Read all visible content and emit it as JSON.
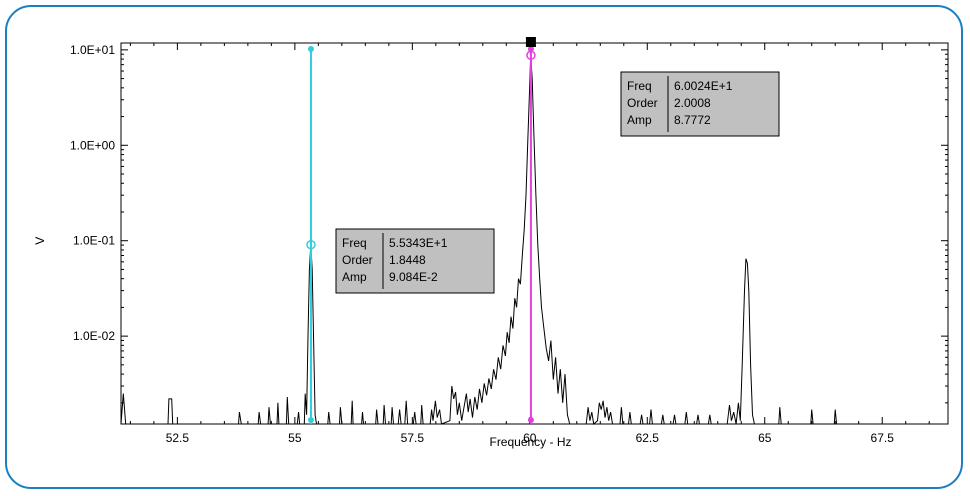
{
  "chart_data": {
    "type": "line",
    "xlabel": "Frequency - Hz",
    "ylabel": "V",
    "xlim": [
      51.3,
      68.9
    ],
    "ylim": [
      0.0012,
      11.8
    ],
    "yscale": "log",
    "x_ticks": [
      52.5,
      55,
      57.5,
      60,
      62.5,
      65,
      67.5
    ],
    "x_tick_labels": [
      "52.5",
      "55",
      "57.5",
      "60",
      "62.5",
      "65",
      "67.5"
    ],
    "y_ticks": [
      10,
      1,
      0.1,
      0.01
    ],
    "y_tick_labels": [
      "1.0E+01",
      "1.0E+00",
      "1.0E-01",
      "1.0E-02"
    ],
    "series": [
      {
        "color": "#000000",
        "points": [
          [
            51.3,
            0.0012
          ],
          [
            51.35,
            0.0025
          ],
          [
            51.4,
            0.0012
          ],
          [
            52.3,
            0.0012
          ],
          [
            52.32,
            0.0022
          ],
          [
            52.38,
            0.0022
          ],
          [
            52.4,
            0.0012
          ],
          [
            53.8,
            0.0012
          ],
          [
            53.82,
            0.0016
          ],
          [
            53.86,
            0.0012
          ],
          [
            54.22,
            0.0012
          ],
          [
            54.24,
            0.0016
          ],
          [
            54.27,
            0.0012
          ],
          [
            54.43,
            0.0012
          ],
          [
            54.45,
            0.0018
          ],
          [
            54.48,
            0.0012
          ],
          [
            54.62,
            0.0012
          ],
          [
            54.64,
            0.002
          ],
          [
            54.66,
            0.0012
          ],
          [
            54.82,
            0.0012
          ],
          [
            54.84,
            0.0023
          ],
          [
            54.87,
            0.0012
          ],
          [
            55.05,
            0.0012
          ],
          [
            55.08,
            0.0016
          ],
          [
            55.1,
            0.0012
          ],
          [
            55.2,
            0.0012
          ],
          [
            55.22,
            0.0025
          ],
          [
            55.25,
            0.0015
          ],
          [
            55.28,
            0.01
          ],
          [
            55.31,
            0.05
          ],
          [
            55.34,
            0.0908
          ],
          [
            55.37,
            0.05
          ],
          [
            55.4,
            0.008
          ],
          [
            55.43,
            0.0015
          ],
          [
            55.46,
            0.0012
          ],
          [
            55.7,
            0.0012
          ],
          [
            55.72,
            0.0016
          ],
          [
            55.75,
            0.0012
          ],
          [
            55.95,
            0.0012
          ],
          [
            55.97,
            0.0018
          ],
          [
            56.0,
            0.0012
          ],
          [
            56.2,
            0.0012
          ],
          [
            56.22,
            0.0021
          ],
          [
            56.24,
            0.0012
          ],
          [
            56.42,
            0.0012
          ],
          [
            56.44,
            0.0016
          ],
          [
            56.46,
            0.0012
          ],
          [
            56.72,
            0.0012
          ],
          [
            56.74,
            0.0017
          ],
          [
            56.77,
            0.0012
          ],
          [
            56.88,
            0.0012
          ],
          [
            56.9,
            0.0019
          ],
          [
            56.93,
            0.0012
          ],
          [
            57.05,
            0.0012
          ],
          [
            57.07,
            0.0018
          ],
          [
            57.1,
            0.0012
          ],
          [
            57.2,
            0.0012
          ],
          [
            57.23,
            0.0017
          ],
          [
            57.26,
            0.0012
          ],
          [
            57.34,
            0.0012
          ],
          [
            57.37,
            0.0021
          ],
          [
            57.4,
            0.0012
          ],
          [
            57.52,
            0.0012
          ],
          [
            57.55,
            0.0016
          ],
          [
            57.58,
            0.0012
          ],
          [
            57.68,
            0.0012
          ],
          [
            57.7,
            0.0019
          ],
          [
            57.73,
            0.0012
          ],
          [
            57.88,
            0.0012
          ],
          [
            57.91,
            0.0017
          ],
          [
            57.94,
            0.0013
          ],
          [
            57.99,
            0.0021
          ],
          [
            58.03,
            0.0014
          ],
          [
            58.08,
            0.0017
          ],
          [
            58.12,
            0.0012
          ],
          [
            58.3,
            0.0013
          ],
          [
            58.34,
            0.003
          ],
          [
            58.38,
            0.0022
          ],
          [
            58.42,
            0.0026
          ],
          [
            58.46,
            0.0015
          ],
          [
            58.5,
            0.002
          ],
          [
            58.55,
            0.0013
          ],
          [
            58.6,
            0.0018
          ],
          [
            58.65,
            0.0025
          ],
          [
            58.69,
            0.0016
          ],
          [
            58.73,
            0.0022
          ],
          [
            58.78,
            0.0014
          ],
          [
            58.83,
            0.0023
          ],
          [
            58.88,
            0.0017
          ],
          [
            58.93,
            0.0028
          ],
          [
            58.98,
            0.002
          ],
          [
            59.03,
            0.0032
          ],
          [
            59.08,
            0.0024
          ],
          [
            59.13,
            0.0036
          ],
          [
            59.18,
            0.0028
          ],
          [
            59.23,
            0.0045
          ],
          [
            59.28,
            0.0035
          ],
          [
            59.33,
            0.006
          ],
          [
            59.38,
            0.0045
          ],
          [
            59.43,
            0.008
          ],
          [
            59.48,
            0.0062
          ],
          [
            59.52,
            0.011
          ],
          [
            59.56,
            0.0085
          ],
          [
            59.6,
            0.016
          ],
          [
            59.64,
            0.012
          ],
          [
            59.68,
            0.025
          ],
          [
            59.72,
            0.02
          ],
          [
            59.76,
            0.04
          ],
          [
            59.8,
            0.035
          ],
          [
            59.84,
            0.07
          ],
          [
            59.88,
            0.13
          ],
          [
            59.92,
            0.3
          ],
          [
            59.96,
            1.2
          ],
          [
            60.0,
            4.5
          ],
          [
            60.02,
            8.7772
          ],
          [
            60.05,
            5.0
          ],
          [
            60.09,
            1.2
          ],
          [
            60.13,
            0.3
          ],
          [
            60.17,
            0.09
          ],
          [
            60.21,
            0.04
          ],
          [
            60.25,
            0.02
          ],
          [
            60.3,
            0.012
          ],
          [
            60.35,
            0.0075
          ],
          [
            60.4,
            0.0055
          ],
          [
            60.45,
            0.009
          ],
          [
            60.5,
            0.0035
          ],
          [
            60.55,
            0.006
          ],
          [
            60.6,
            0.0025
          ],
          [
            60.65,
            0.0045
          ],
          [
            60.7,
            0.002
          ],
          [
            60.75,
            0.004
          ],
          [
            60.8,
            0.0015
          ],
          [
            60.85,
            0.0012
          ],
          [
            61.2,
            0.0012
          ],
          [
            61.24,
            0.0018
          ],
          [
            61.28,
            0.0013
          ],
          [
            61.32,
            0.0016
          ],
          [
            61.36,
            0.0012
          ],
          [
            61.44,
            0.0013
          ],
          [
            61.48,
            0.002
          ],
          [
            61.52,
            0.0017
          ],
          [
            61.56,
            0.0021
          ],
          [
            61.6,
            0.0014
          ],
          [
            61.64,
            0.0018
          ],
          [
            61.68,
            0.0013
          ],
          [
            61.72,
            0.0016
          ],
          [
            61.76,
            0.0012
          ],
          [
            61.92,
            0.0012
          ],
          [
            61.95,
            0.0018
          ],
          [
            61.98,
            0.0012
          ],
          [
            62.1,
            0.0012
          ],
          [
            62.13,
            0.0016
          ],
          [
            62.16,
            0.0012
          ],
          [
            62.35,
            0.0012
          ],
          [
            62.38,
            0.0015
          ],
          [
            62.41,
            0.0012
          ],
          [
            62.55,
            0.0012
          ],
          [
            62.58,
            0.0017
          ],
          [
            62.61,
            0.0012
          ],
          [
            62.8,
            0.0012
          ],
          [
            62.83,
            0.0015
          ],
          [
            62.86,
            0.0012
          ],
          [
            63.05,
            0.0012
          ],
          [
            63.08,
            0.0015
          ],
          [
            63.11,
            0.0012
          ],
          [
            63.3,
            0.0012
          ],
          [
            63.33,
            0.0016
          ],
          [
            63.36,
            0.0012
          ],
          [
            63.55,
            0.0012
          ],
          [
            63.58,
            0.0015
          ],
          [
            63.61,
            0.0012
          ],
          [
            63.8,
            0.0012
          ],
          [
            63.83,
            0.0015
          ],
          [
            63.86,
            0.0012
          ],
          [
            64.2,
            0.0012
          ],
          [
            64.25,
            0.0019
          ],
          [
            64.29,
            0.0013
          ],
          [
            64.34,
            0.0016
          ],
          [
            64.39,
            0.0012
          ],
          [
            64.44,
            0.002
          ],
          [
            64.48,
            0.0013
          ],
          [
            64.52,
            0.005
          ],
          [
            64.57,
            0.03
          ],
          [
            64.6,
            0.065
          ],
          [
            64.63,
            0.058
          ],
          [
            64.66,
            0.03
          ],
          [
            64.7,
            0.005
          ],
          [
            64.74,
            0.0015
          ],
          [
            64.78,
            0.0012
          ],
          [
            65.3,
            0.0012
          ],
          [
            65.32,
            0.0018
          ],
          [
            65.35,
            0.0012
          ],
          [
            65.98,
            0.0012
          ],
          [
            66.0,
            0.0017
          ],
          [
            66.03,
            0.0012
          ],
          [
            66.48,
            0.0012
          ],
          [
            66.5,
            0.0017
          ],
          [
            66.53,
            0.0012
          ],
          [
            68.9,
            0.0012
          ]
        ]
      }
    ],
    "cursors": [
      {
        "color": "#33ccdd",
        "x": 55.343,
        "marker_y": 0.09084,
        "readout": {
          "freq_label": "Freq",
          "freq": "5.5343E+1",
          "order_label": "Order",
          "order": "1.8448",
          "amp_label": "Amp",
          "amp": "9.084E-2"
        }
      },
      {
        "color": "#e040e0",
        "x": 60.024,
        "marker_y": 8.7772,
        "readout": {
          "freq_label": "Freq",
          "freq": "6.0024E+1",
          "order_label": "Order",
          "order": "2.0008",
          "amp_label": "Amp",
          "amp": "8.7772"
        }
      }
    ],
    "grid": false,
    "legend": "none"
  }
}
